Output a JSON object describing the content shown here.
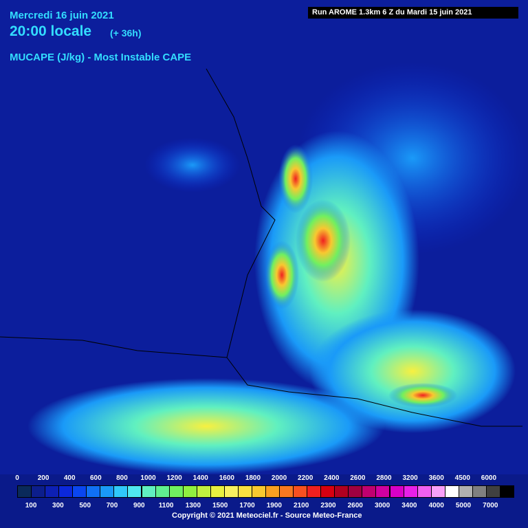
{
  "header": {
    "date": "Mercredi 16 juin 2021",
    "time": "20:00 locale",
    "offset": "(+ 36h)",
    "parameter": "MUCAPE (J/kg) - Most Instable CAPE",
    "run": "Run AROME 1.3km 6 Z du Mardi 15 juin 2021"
  },
  "legend": {
    "top_labels": [
      "0",
      "200",
      "400",
      "600",
      "800",
      "1000",
      "1200",
      "1400",
      "1600",
      "1800",
      "2000",
      "2200",
      "2400",
      "2600",
      "2800",
      "3200",
      "3600",
      "4500",
      "6000"
    ],
    "bottom_labels": [
      "100",
      "300",
      "500",
      "700",
      "900",
      "1100",
      "1300",
      "1500",
      "1700",
      "1900",
      "2100",
      "2300",
      "2600",
      "3000",
      "3400",
      "4000",
      "5000",
      "7000"
    ],
    "colors": [
      "#0a2a5a",
      "#0c1e8c",
      "#0d20b4",
      "#0b28dc",
      "#0a46f0",
      "#1070f5",
      "#1a9af8",
      "#30c8fa",
      "#50e8f0",
      "#60f0c0",
      "#60f090",
      "#70f060",
      "#90f040",
      "#c0f040",
      "#e8f040",
      "#f8f060",
      "#f8e040",
      "#f8c830",
      "#f8a020",
      "#f87820",
      "#f85020",
      "#f02020",
      "#d80010",
      "#b00020",
      "#a00040",
      "#c00070",
      "#d000a0",
      "#d800c8",
      "#e820e8",
      "#f060f0",
      "#f8a0f8",
      "#ffffff",
      "#b0b0b0",
      "#808080",
      "#404040",
      "#000000"
    ]
  },
  "footer": {
    "copyright": "Copyright © 2021 Meteociel.fr - Source Meteo-France"
  }
}
